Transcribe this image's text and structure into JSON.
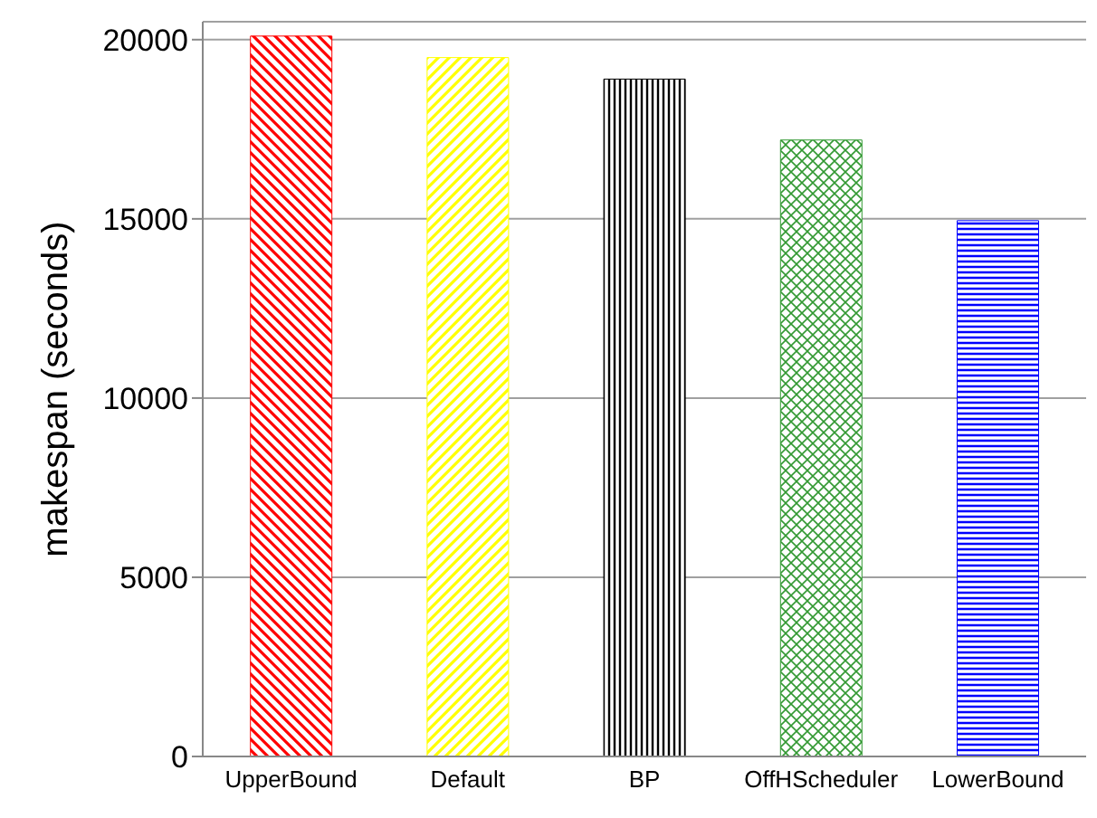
{
  "chart_data": {
    "type": "bar",
    "ylabel": "makespan (seconds)",
    "categories": [
      "UpperBound",
      "Default",
      "BP",
      "OffHScheduler",
      "LowerBound"
    ],
    "values": [
      20100,
      19500,
      18900,
      17200,
      14950
    ],
    "colors": [
      "#ff0000",
      "#ffff00",
      "#000000",
      "#339933",
      "#0000ff"
    ],
    "ylim": [
      0,
      20500
    ],
    "yticks": [
      0,
      5000,
      10000,
      15000,
      20000
    ],
    "grid": "y"
  }
}
